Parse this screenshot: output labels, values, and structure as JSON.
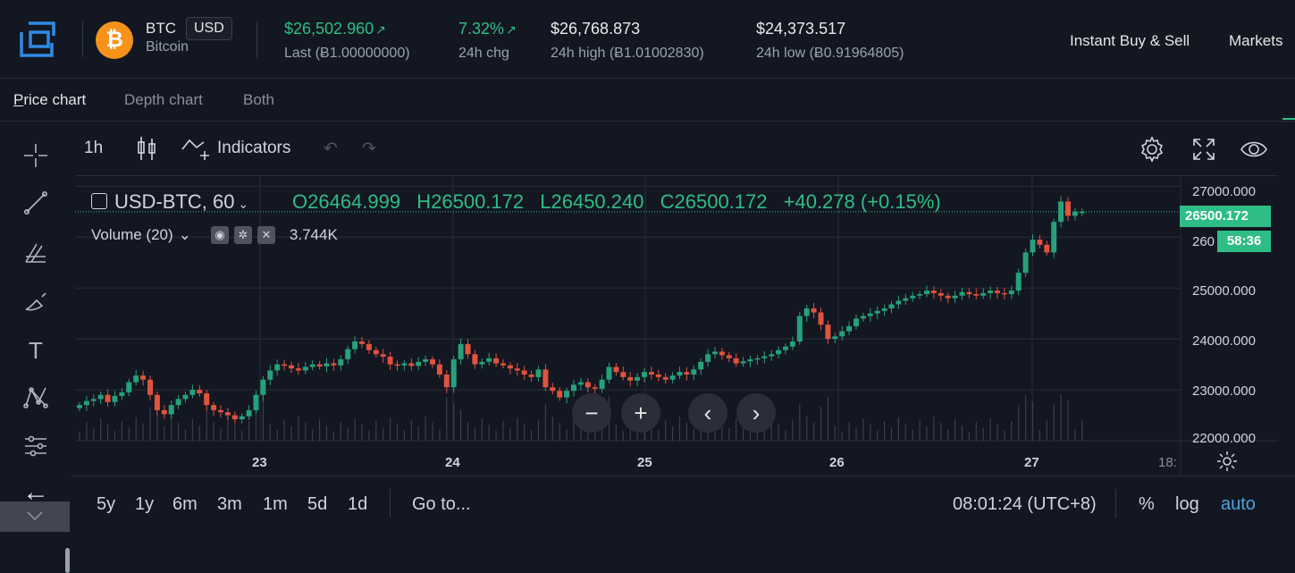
{
  "header": {
    "symbol": "BTC",
    "currency_badge": "USD",
    "coin_name": "Bitcoin",
    "coin_glyph": "₿",
    "stats": [
      {
        "value": "$26,502.960",
        "arrow": "↗",
        "label": "Last (Ƀ1.00000000)",
        "color": "#2ebd85"
      },
      {
        "value": "7.32%",
        "arrow": "↗",
        "label": "24h chg",
        "color": "#2ebd85"
      },
      {
        "value": "$26,768.873",
        "arrow": "",
        "label": "24h high (Ƀ1.01002830)",
        "color": "#eaeaea"
      },
      {
        "value": "$24,373.517",
        "arrow": "",
        "label": "24h low (Ƀ0.91964805)",
        "color": "#eaeaea"
      }
    ],
    "nav": {
      "instant": "Instant Buy & Sell",
      "markets": "Markets"
    }
  },
  "tabs": [
    {
      "label": "Price chart",
      "active": true
    },
    {
      "label": "Depth chart",
      "active": false
    },
    {
      "label": "Both",
      "active": false
    }
  ],
  "toolbar": {
    "interval": "1h",
    "indicators": "Indicators"
  },
  "legend": {
    "symbol": "USD-BTC, 60",
    "open": "O26464.999",
    "high": "H26500.172",
    "low": "L26450.240",
    "close": "C26500.172",
    "change": "+40.278 (+0.15%)",
    "volume_label": "Volume (20)",
    "volume_value": "3.744K"
  },
  "price_axis": {
    "labels": [
      "27000.000",
      "26000.000",
      "25000.000",
      "24000.000",
      "23000.000",
      "22000.000"
    ],
    "current_price": "26500.172",
    "countdown": "58:36",
    "partial_label": "260"
  },
  "time_axis": {
    "labels": [
      "23",
      "24",
      "25",
      "26",
      "27",
      "18:"
    ]
  },
  "bottom": {
    "ranges": [
      "5y",
      "1y",
      "6m",
      "3m",
      "1m",
      "5d",
      "1d"
    ],
    "goto": "Go to...",
    "clock": "08:01:24 (UTC+8)",
    "percent": "%",
    "log": "log",
    "auto": "auto"
  },
  "colors": {
    "up": "#26a17b",
    "down": "#e0533d",
    "accent": "#2ebd85",
    "background": "#131722"
  },
  "chart_data": {
    "type": "candlestick",
    "symbol": "USD-BTC",
    "interval": "60",
    "ylim": [
      22000,
      27200
    ],
    "y_ticks": [
      22000,
      23000,
      24000,
      25000,
      26000,
      27000
    ],
    "x_ticks": [
      "23",
      "24",
      "25",
      "26",
      "27",
      "18:"
    ],
    "last_price": 26500.172,
    "closes": [
      22700,
      22780,
      22820,
      22900,
      22760,
      22880,
      22950,
      23150,
      23280,
      23200,
      22900,
      22600,
      22520,
      22700,
      22820,
      22900,
      23000,
      22930,
      22700,
      22600,
      22560,
      22500,
      22420,
      22480,
      22600,
      22900,
      23200,
      23380,
      23500,
      23480,
      23420,
      23380,
      23450,
      23500,
      23460,
      23520,
      23480,
      23600,
      23800,
      23950,
      23900,
      23780,
      23700,
      23650,
      23500,
      23480,
      23520,
      23470,
      23550,
      23600,
      23500,
      23300,
      23050,
      23600,
      23900,
      23700,
      23500,
      23550,
      23620,
      23520,
      23480,
      23420,
      23380,
      23300,
      23250,
      23400,
      23050,
      22980,
      22850,
      22980,
      23100,
      23150,
      23050,
      23020,
      23200,
      23450,
      23350,
      23250,
      23180,
      23250,
      23350,
      23300,
      23250,
      23200,
      23280,
      23350,
      23300,
      23400,
      23550,
      23700,
      23750,
      23680,
      23620,
      23520,
      23560,
      23600,
      23620,
      23660,
      23700,
      23780,
      23850,
      23950,
      24450,
      24600,
      24520,
      24280,
      24000,
      24050,
      24150,
      24250,
      24400,
      24450,
      24500,
      24550,
      24600,
      24680,
      24750,
      24800,
      24850,
      24880,
      24950,
      24900,
      24850,
      24800,
      24850,
      24920,
      24880,
      24850,
      24900,
      24950,
      24900,
      24880,
      24950,
      25300,
      25700,
      25950,
      25850,
      25700,
      26300,
      26700,
      26420,
      26500,
      26500
    ]
  }
}
